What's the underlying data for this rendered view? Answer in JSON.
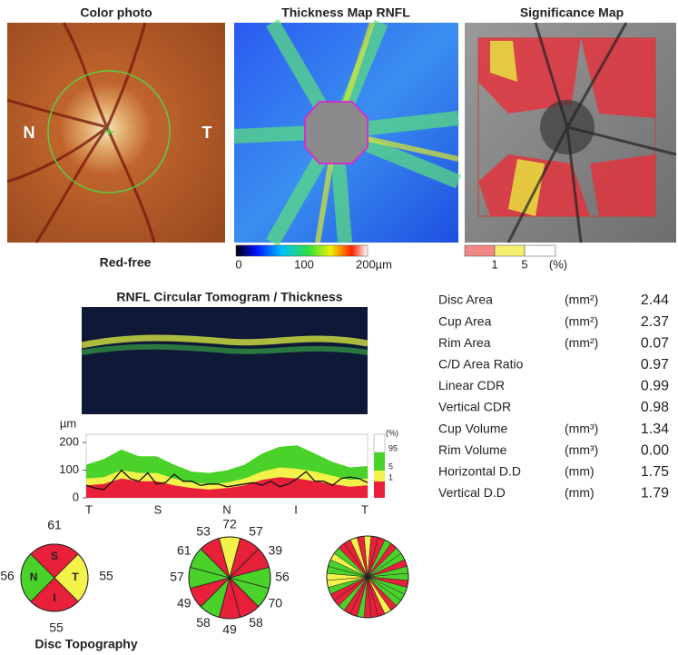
{
  "color_photo": {
    "title": "Color photo",
    "label_left": "N",
    "label_right": "T",
    "caption": "Red-free"
  },
  "thickness_map": {
    "title": "Thickness Map RNFL",
    "scale_labels": [
      "0",
      "100",
      "200µm"
    ]
  },
  "significance_map": {
    "title": "Significance Map",
    "scale_labels": [
      "1",
      "5",
      "(%)"
    ]
  },
  "measurements": {
    "rows": [
      {
        "name": "Disc Area",
        "unit": "(mm²)",
        "value": "2.44"
      },
      {
        "name": "Cup Area",
        "unit": "(mm²)",
        "value": "2.37"
      },
      {
        "name": "Rim Area",
        "unit": "(mm²)",
        "value": "0.07"
      },
      {
        "name": "C/D Area Ratio",
        "unit": "",
        "value": "0.97"
      },
      {
        "name": "Linear CDR",
        "unit": "",
        "value": "0.99"
      },
      {
        "name": "Vertical CDR",
        "unit": "",
        "value": "0.98"
      },
      {
        "name": "Cup Volume",
        "unit": "(mm³)",
        "value": "1.34"
      },
      {
        "name": "Rim Volume",
        "unit": "(mm³)",
        "value": "0.00"
      },
      {
        "name": "Horizontal D.D",
        "unit": "(mm)",
        "value": "1.75"
      },
      {
        "name": "Vertical D.D",
        "unit": "(mm)",
        "value": "1.79"
      }
    ]
  },
  "chart_data": {
    "type": "area",
    "title": "RNFL Circular Tomogram / Thickness",
    "y_label": "µm",
    "ylim": [
      0,
      230
    ],
    "yticks": [
      0,
      100,
      200
    ],
    "x_labels": [
      "T",
      "S",
      "N",
      "I",
      "T"
    ],
    "legend_title": "(%)",
    "bands": [
      {
        "name": "1",
        "color": "#e8203a",
        "values": [
          45,
          50,
          70,
          60,
          60,
          45,
          35,
          30,
          35,
          45,
          65,
          75,
          70,
          60,
          50,
          40,
          45
        ]
      },
      {
        "name": "5",
        "color": "#f2f24a",
        "values": [
          70,
          75,
          100,
          90,
          90,
          70,
          55,
          50,
          55,
          70,
          95,
          110,
          105,
          95,
          80,
          65,
          70
        ]
      },
      {
        "name": "95",
        "color": "#4ad22a",
        "values": [
          120,
          140,
          175,
          150,
          150,
          120,
          95,
          90,
          100,
          120,
          160,
          185,
          190,
          160,
          130,
          110,
          115
        ]
      }
    ],
    "thickness": {
      "color": "#111111",
      "values": [
        45,
        35,
        30,
        60,
        100,
        70,
        60,
        90,
        50,
        55,
        85,
        60,
        60,
        45,
        50,
        50,
        40,
        45,
        50,
        55,
        45,
        60,
        40,
        50,
        70,
        95,
        60,
        60,
        45,
        70,
        75,
        70,
        55
      ]
    }
  },
  "quadrants": {
    "labels": [
      "S",
      "T",
      "I",
      "N"
    ],
    "values": [
      61,
      55,
      55,
      56
    ],
    "colors": [
      "#e8203a",
      "#f2f24a",
      "#e8203a",
      "#4ad22a"
    ]
  },
  "clock_hours": {
    "values": [
      72,
      57,
      39,
      56,
      70,
      58,
      49,
      58,
      49,
      57,
      61,
      53
    ],
    "colors": [
      "#f2f24a",
      "#e8203a",
      "#e8203a",
      "#4ad22a",
      "#4ad22a",
      "#e8203a",
      "#e8203a",
      "#4ad22a",
      "#e8203a",
      "#4ad22a",
      "#4ad22a",
      "#e8203a"
    ]
  },
  "sectors": {
    "colors": [
      "#f2f24a",
      "#e8203a",
      "#e8203a",
      "#4ad22a",
      "#e8203a",
      "#4ad22a",
      "#4ad22a",
      "#e8203a",
      "#4ad22a",
      "#4ad22a",
      "#e8203a",
      "#4ad22a",
      "#4ad22a",
      "#4ad22a",
      "#e8203a",
      "#f2f24a",
      "#e8203a",
      "#e8203a",
      "#e8203a",
      "#4ad22a",
      "#e8203a",
      "#e8203a",
      "#4ad22a",
      "#e8203a",
      "#e8203a",
      "#4ad22a",
      "#f2f24a",
      "#f2f24a",
      "#4ad22a",
      "#4ad22a",
      "#f2f24a",
      "#4ad22a",
      "#e8203a",
      "#e8203a",
      "#f2f24a",
      "#e8203a"
    ]
  },
  "footer": "Disc Topography"
}
